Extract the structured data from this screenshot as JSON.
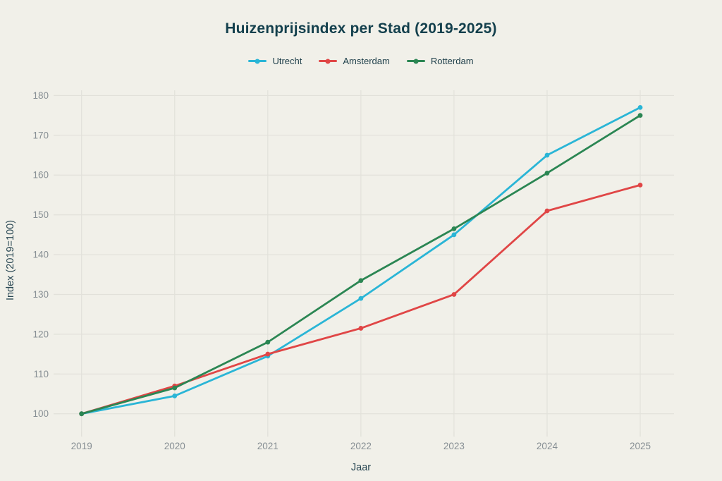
{
  "chart_data": {
    "type": "line",
    "title": "Huizenprijsindex per Stad (2019-2025)",
    "xlabel": "Jaar",
    "ylabel": "Index (2019=100)",
    "x": [
      2019,
      2020,
      2021,
      2022,
      2023,
      2024,
      2025
    ],
    "series": [
      {
        "name": "Utrecht",
        "color": "#2ab5d6",
        "values": [
          100,
          104.5,
          114.5,
          129,
          145,
          165,
          177
        ]
      },
      {
        "name": "Amsterdam",
        "color": "#e04646",
        "values": [
          100,
          107,
          115,
          121.5,
          130,
          151,
          157.5
        ]
      },
      {
        "name": "Rotterdam",
        "color": "#2b8653",
        "values": [
          100,
          106.5,
          118,
          133.5,
          146.5,
          160.5,
          175
        ]
      }
    ],
    "ylim": [
      100,
      180
    ],
    "yticks": [
      100,
      110,
      120,
      130,
      140,
      150,
      160,
      170,
      180
    ],
    "grid": true,
    "legend_position": "top",
    "marker": "circle"
  },
  "colors": {
    "background": "#f1f0e9",
    "title": "#14404d",
    "axis_title": "#2a4854",
    "tick_label": "#878f94",
    "grid": "#e2e1da"
  }
}
